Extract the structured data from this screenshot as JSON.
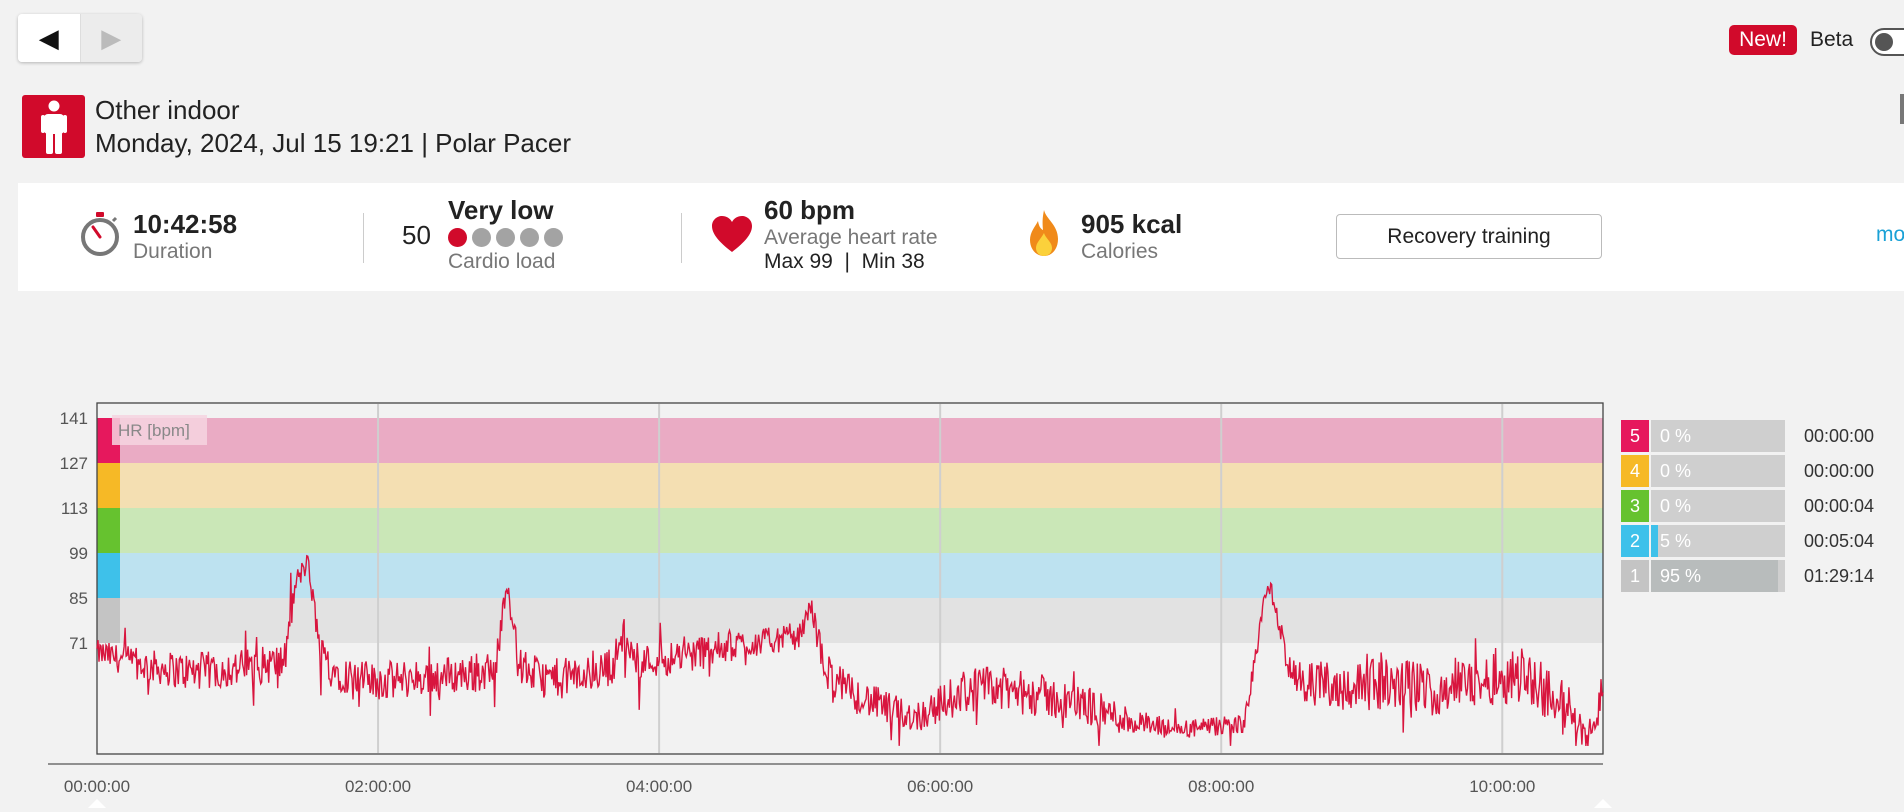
{
  "nav": {
    "back_glyph": "◀",
    "forward_glyph": "▶"
  },
  "header": {
    "new_badge": "New!",
    "beta_label": "Beta",
    "beta_enabled": false
  },
  "session": {
    "sport_icon": "person-standing-icon",
    "sport": "Other indoor",
    "meta": "Monday, 2024, Jul 15 19:21 | Polar Pacer"
  },
  "summary": {
    "duration": {
      "icon": "stopwatch-icon",
      "value": "10:42:58",
      "label": "Duration"
    },
    "cardio_load": {
      "value": "50",
      "level": "Very low",
      "label": "Cardio load",
      "level_dots": 1,
      "total_dots": 5
    },
    "heart_rate": {
      "icon": "heart-icon",
      "value": "60 bpm",
      "label": "Average heart rate",
      "max_min": "Max 99  |  Min 38"
    },
    "calories": {
      "icon": "flame-icon",
      "value": "905 kcal",
      "label": "Calories"
    },
    "training_benefit": "Recovery training",
    "more_link": "mo"
  },
  "colors": {
    "accent": "#d10a2b",
    "hr_line": "#d8153e",
    "zone5": "#e6185d",
    "zone4": "#f6b926",
    "zone3": "#66c22f",
    "zone2": "#3ec1ea",
    "zone1": "#c4c4c4",
    "zone5_band": "#eaabc4",
    "zone4_band": "#f4dfb2",
    "zone3_band": "#cae7b7",
    "zone2_band": "#bde2f0",
    "zone1_band": "#e2e2e2"
  },
  "chart_data": {
    "type": "line",
    "series_label": "HR [bpm]",
    "y_ticks": [
      141,
      127,
      113,
      99,
      85,
      71
    ],
    "x_ticks": [
      "00:00:00",
      "02:00:00",
      "04:00:00",
      "06:00:00",
      "08:00:00",
      "10:00:00"
    ],
    "x_range_minutes": [
      0,
      643
    ],
    "y_range": [
      38,
      145
    ],
    "zones": [
      {
        "zone": "5",
        "from": 127,
        "to": 141,
        "pct": "0 %",
        "fraction": 0.0,
        "time": "00:00:00"
      },
      {
        "zone": "4",
        "from": 113,
        "to": 127,
        "pct": "0 %",
        "fraction": 0.0,
        "time": "00:00:00"
      },
      {
        "zone": "3",
        "from": 99,
        "to": 113,
        "pct": "0 %",
        "fraction": 0.0,
        "time": "00:00:04"
      },
      {
        "zone": "2",
        "from": 85,
        "to": 99,
        "pct": "5 %",
        "fraction": 0.05,
        "time": "00:05:04"
      },
      {
        "zone": "1",
        "from": 71,
        "to": 85,
        "pct": "95 %",
        "fraction": 0.95,
        "time": "01:29:14"
      }
    ],
    "hr_profile": {
      "x": [
        0,
        20,
        40,
        60,
        80,
        85,
        90,
        95,
        100,
        110,
        120,
        150,
        170,
        175,
        180,
        190,
        210,
        220,
        225,
        230,
        250,
        270,
        290,
        300,
        305,
        310,
        320,
        340,
        350,
        360,
        370,
        380,
        400,
        420,
        440,
        450,
        460,
        480,
        490,
        500,
        510,
        520,
        525,
        530,
        540,
        560,
        570,
        580,
        600,
        610,
        620,
        630,
        635,
        640,
        643
      ],
      "y": [
        68,
        64,
        62,
        63,
        65,
        90,
        96,
        70,
        63,
        60,
        59,
        61,
        62,
        91,
        64,
        60,
        61,
        64,
        74,
        65,
        67,
        70,
        72,
        73,
        83,
        64,
        56,
        50,
        48,
        52,
        56,
        57,
        55,
        52,
        47,
        45,
        44,
        45,
        46,
        91,
        60,
        58,
        59,
        57,
        58,
        58,
        56,
        58,
        60,
        62,
        55,
        48,
        43,
        45,
        60
      ],
      "noise": [
        4,
        5,
        6,
        6,
        6,
        4,
        3,
        5,
        6,
        6,
        6,
        6,
        6,
        3,
        6,
        6,
        6,
        6,
        5,
        5,
        6,
        5,
        4,
        4,
        3,
        6,
        6,
        5,
        5,
        6,
        7,
        7,
        7,
        6,
        5,
        4,
        3,
        3,
        3,
        3,
        6,
        7,
        7,
        7,
        8,
        8,
        8,
        8,
        8,
        9,
        9,
        9,
        6,
        4,
        6
      ]
    }
  }
}
